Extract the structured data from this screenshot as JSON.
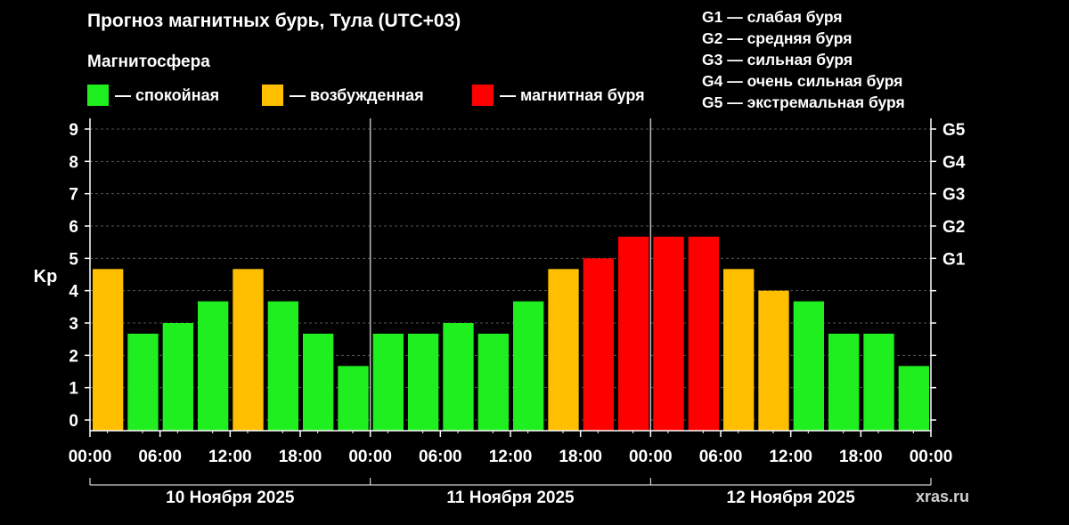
{
  "header": {
    "title": "Прогноз магнитных бурь, Тула (UTC+03)",
    "subtitle": "Магнитосфера"
  },
  "legend": [
    {
      "label": "— спокойная",
      "color": "#1fef1f"
    },
    {
      "label": "— возбужденная",
      "color": "#ffbf00"
    },
    {
      "label": "— магнитная буря",
      "color": "#ff0000"
    }
  ],
  "g_legend": [
    "G1 — слабая буря",
    "G2 — средняя буря",
    "G3 — сильная буря",
    "G4 — очень сильная буря",
    "G5 — экстремальная буря"
  ],
  "site": "xras.ru",
  "chart_data": {
    "type": "bar",
    "title": "Прогноз магнитных бурь, Тула (UTC+03)",
    "ylabel": "Kp",
    "ylim": [
      0,
      9
    ],
    "y_ticks": [
      "0",
      "1",
      "2",
      "3",
      "4",
      "5",
      "6",
      "7",
      "8",
      "9"
    ],
    "right_ticks": [
      {
        "value": 5,
        "label": "G1"
      },
      {
        "value": 6,
        "label": "G2"
      },
      {
        "value": 7,
        "label": "G3"
      },
      {
        "value": 8,
        "label": "G4"
      },
      {
        "value": 9,
        "label": "G5"
      }
    ],
    "x_tick_labels": [
      "00:00",
      "06:00",
      "12:00",
      "18:00",
      "00:00",
      "06:00",
      "12:00",
      "18:00",
      "00:00",
      "06:00",
      "12:00",
      "18:00",
      "00:00"
    ],
    "days": [
      "10 Ноября 2025",
      "11 Ноября 2025",
      "12 Ноября 2025"
    ],
    "bars_per_day": 8,
    "grid": true,
    "values": [
      4.67,
      2.67,
      3.0,
      3.67,
      4.67,
      3.67,
      2.67,
      1.67,
      2.67,
      2.67,
      3.0,
      2.67,
      3.67,
      4.67,
      5.0,
      5.67,
      5.67,
      5.67,
      4.67,
      4.0,
      3.67,
      2.67,
      2.67,
      1.67
    ],
    "levels": [
      "excited",
      "quiet",
      "quiet",
      "quiet",
      "excited",
      "quiet",
      "quiet",
      "quiet",
      "quiet",
      "quiet",
      "quiet",
      "quiet",
      "quiet",
      "excited",
      "storm",
      "storm",
      "storm",
      "storm",
      "excited",
      "excited",
      "quiet",
      "quiet",
      "quiet",
      "quiet"
    ],
    "level_colors": {
      "quiet": "#1fef1f",
      "excited": "#ffbf00",
      "storm": "#ff0000"
    }
  }
}
